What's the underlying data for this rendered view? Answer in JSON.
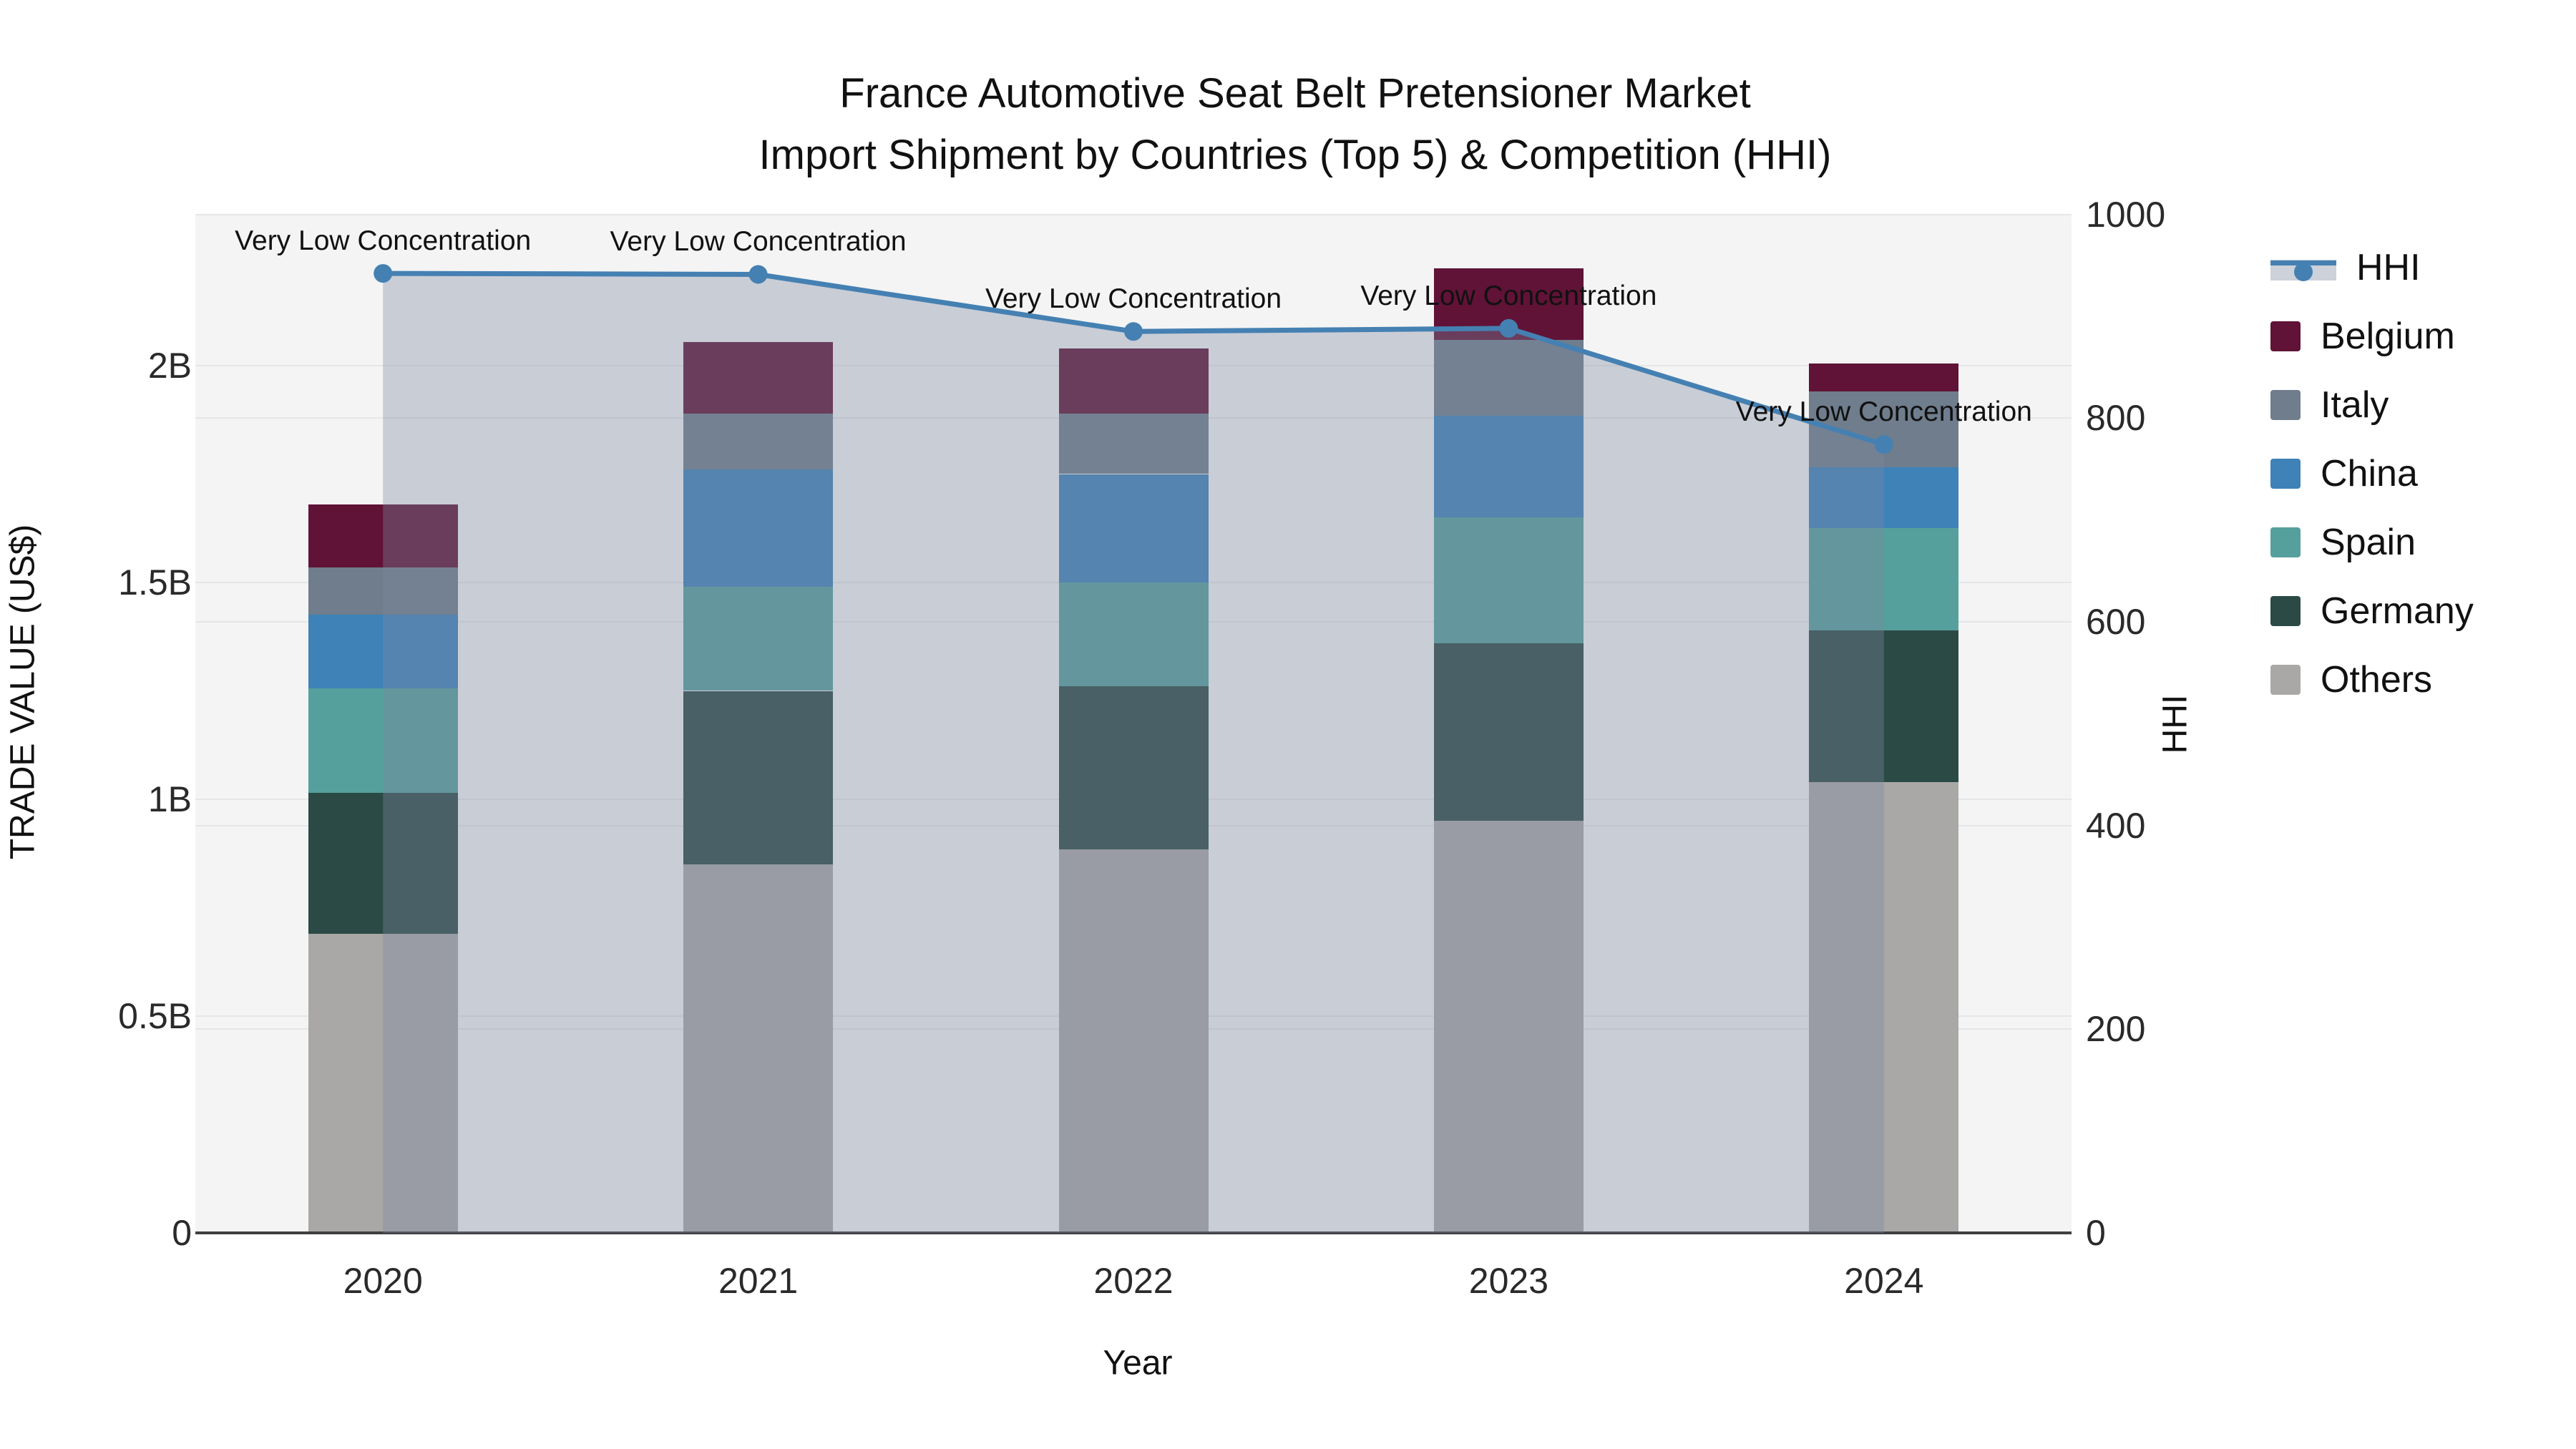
{
  "title": {
    "line1": "France Automotive Seat Belt Pretensioner Market",
    "line2": "Import Shipment by Countries (Top 5) & Competition (HHI)"
  },
  "axes": {
    "x": {
      "title": "Year",
      "categories": [
        "2020",
        "2021",
        "2022",
        "2023",
        "2024"
      ]
    },
    "y_left": {
      "title": "TRADE VALUE (US$)",
      "tick_labels": [
        "0",
        "0.5B",
        "1B",
        "1.5B",
        "2B"
      ],
      "tick_values": [
        0,
        0.5,
        1,
        1.5,
        2
      ]
    },
    "y_right": {
      "title": "HHI",
      "tick_labels": [
        "0",
        "200",
        "400",
        "600",
        "800",
        "1000"
      ],
      "tick_values": [
        0,
        200,
        400,
        600,
        800,
        1000
      ]
    }
  },
  "legend": {
    "items": [
      {
        "label": "HHI",
        "type": "line",
        "color": "#4580B2"
      },
      {
        "label": "Belgium",
        "type": "swatch",
        "color": "#601336"
      },
      {
        "label": "Italy",
        "type": "swatch",
        "color": "#6F7D8C"
      },
      {
        "label": "China",
        "type": "swatch",
        "color": "#3E82B8"
      },
      {
        "label": "Spain",
        "type": "swatch",
        "color": "#55A09C"
      },
      {
        "label": "Germany",
        "type": "swatch",
        "color": "#2B4A45"
      },
      {
        "label": "Others",
        "type": "swatch",
        "color": "#A9A8A7"
      }
    ]
  },
  "chart_data": {
    "type": "stacked-bar+line",
    "title": "France Automotive Seat Belt Pretensioner Market Import Shipment by Countries (Top 5) & Competition (HHI)",
    "xlabel": "Year",
    "ylabel_left": "TRADE VALUE (US$)",
    "ylabel_right": "HHI",
    "categories": [
      "2020",
      "2021",
      "2022",
      "2023",
      "2024"
    ],
    "bar_unit": "billions US$",
    "ylim_left": [
      0,
      2.35
    ],
    "ylim_right": [
      0,
      1000
    ],
    "grid": true,
    "legend_position": "right",
    "series": [
      {
        "name": "Belgium",
        "color": "#601336",
        "values": [
          0.145,
          0.165,
          0.15,
          0.165,
          0.065
        ]
      },
      {
        "name": "Italy",
        "color": "#6F7D8C",
        "values": [
          0.11,
          0.13,
          0.14,
          0.175,
          0.175
        ]
      },
      {
        "name": "China",
        "color": "#3E82B8",
        "values": [
          0.17,
          0.27,
          0.25,
          0.235,
          0.14
        ]
      },
      {
        "name": "Spain",
        "color": "#55A09C",
        "values": [
          0.24,
          0.24,
          0.24,
          0.29,
          0.235
        ]
      },
      {
        "name": "Germany",
        "color": "#2B4A45",
        "values": [
          0.325,
          0.4,
          0.375,
          0.41,
          0.35
        ]
      },
      {
        "name": "Others",
        "color": "#A9A8A7",
        "values": [
          0.69,
          0.85,
          0.885,
          0.95,
          1.04
        ]
      }
    ],
    "bar_totals": [
      1.68,
      2.055,
      2.04,
      2.225,
      2.005
    ],
    "line_series": {
      "name": "HHI",
      "axis": "right",
      "color": "#4580B2",
      "area_fill": "rgba(124,136,161,0.36)",
      "values": [
        942,
        941,
        885,
        888,
        774
      ]
    },
    "annotations": [
      {
        "text": "Very Low Concentration",
        "category": "2020"
      },
      {
        "text": "Very Low Concentration",
        "category": "2021"
      },
      {
        "text": "Very Low Concentration",
        "category": "2022"
      },
      {
        "text": "Very Low Concentration",
        "category": "2023"
      },
      {
        "text": "Very Low Concentration",
        "category": "2024"
      }
    ]
  }
}
